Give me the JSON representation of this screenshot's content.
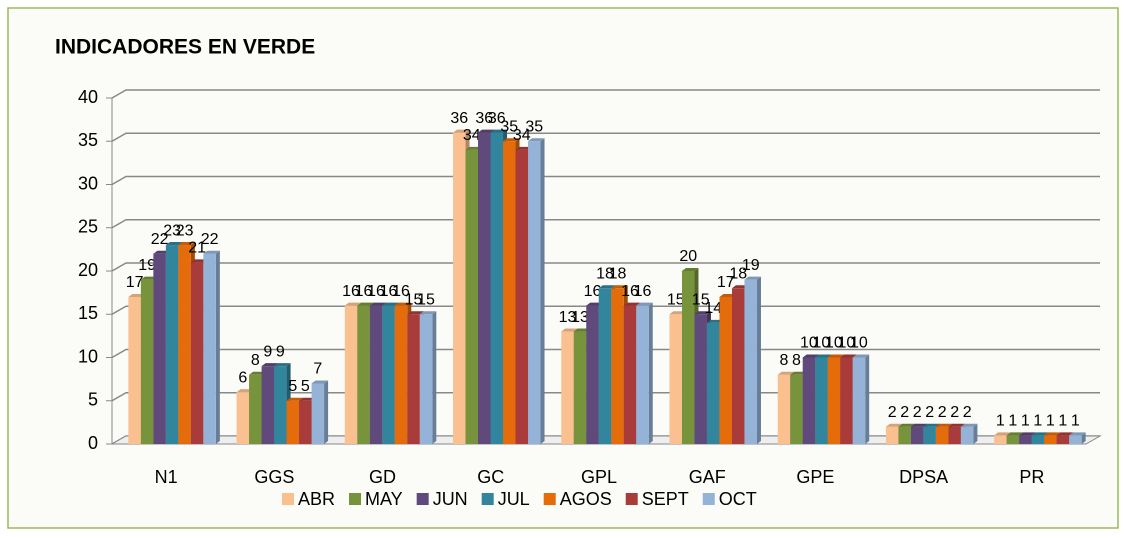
{
  "chart_data": {
    "type": "bar",
    "title": "INDICADORES EN VERDE",
    "categories": [
      "N1",
      "GGS",
      "GD",
      "GC",
      "GPL",
      "GAF",
      "GPE",
      "DPSA",
      "PR"
    ],
    "series": [
      {
        "name": "ABR",
        "color": "#fac090",
        "values": [
          17,
          6,
          16,
          36,
          13,
          15,
          8,
          2,
          1
        ]
      },
      {
        "name": "MAY",
        "color": "#77933c",
        "values": [
          19,
          8,
          16,
          34,
          13,
          20,
          8,
          2,
          1
        ]
      },
      {
        "name": "JUN",
        "color": "#604a7b",
        "values": [
          22,
          9,
          16,
          36,
          16,
          15,
          10,
          2,
          1
        ]
      },
      {
        "name": "JUL",
        "color": "#31859c",
        "values": [
          23,
          9,
          16,
          36,
          18,
          14,
          10,
          2,
          1
        ]
      },
      {
        "name": "AGOS",
        "color": "#e46c0a",
        "values": [
          23,
          5,
          16,
          35,
          18,
          17,
          10,
          2,
          1
        ]
      },
      {
        "name": "SEPT",
        "color": "#a93c3a",
        "values": [
          21,
          5,
          15,
          34,
          16,
          18,
          10,
          2,
          1
        ]
      },
      {
        "name": "OCT",
        "color": "#95b3d7",
        "values": [
          22,
          7,
          15,
          35,
          16,
          19,
          10,
          2,
          1
        ]
      }
    ],
    "ylim": [
      0,
      40
    ],
    "yticks": [
      0,
      5,
      10,
      15,
      20,
      25,
      30,
      35,
      40
    ],
    "grid": true,
    "legend": "bottom"
  }
}
